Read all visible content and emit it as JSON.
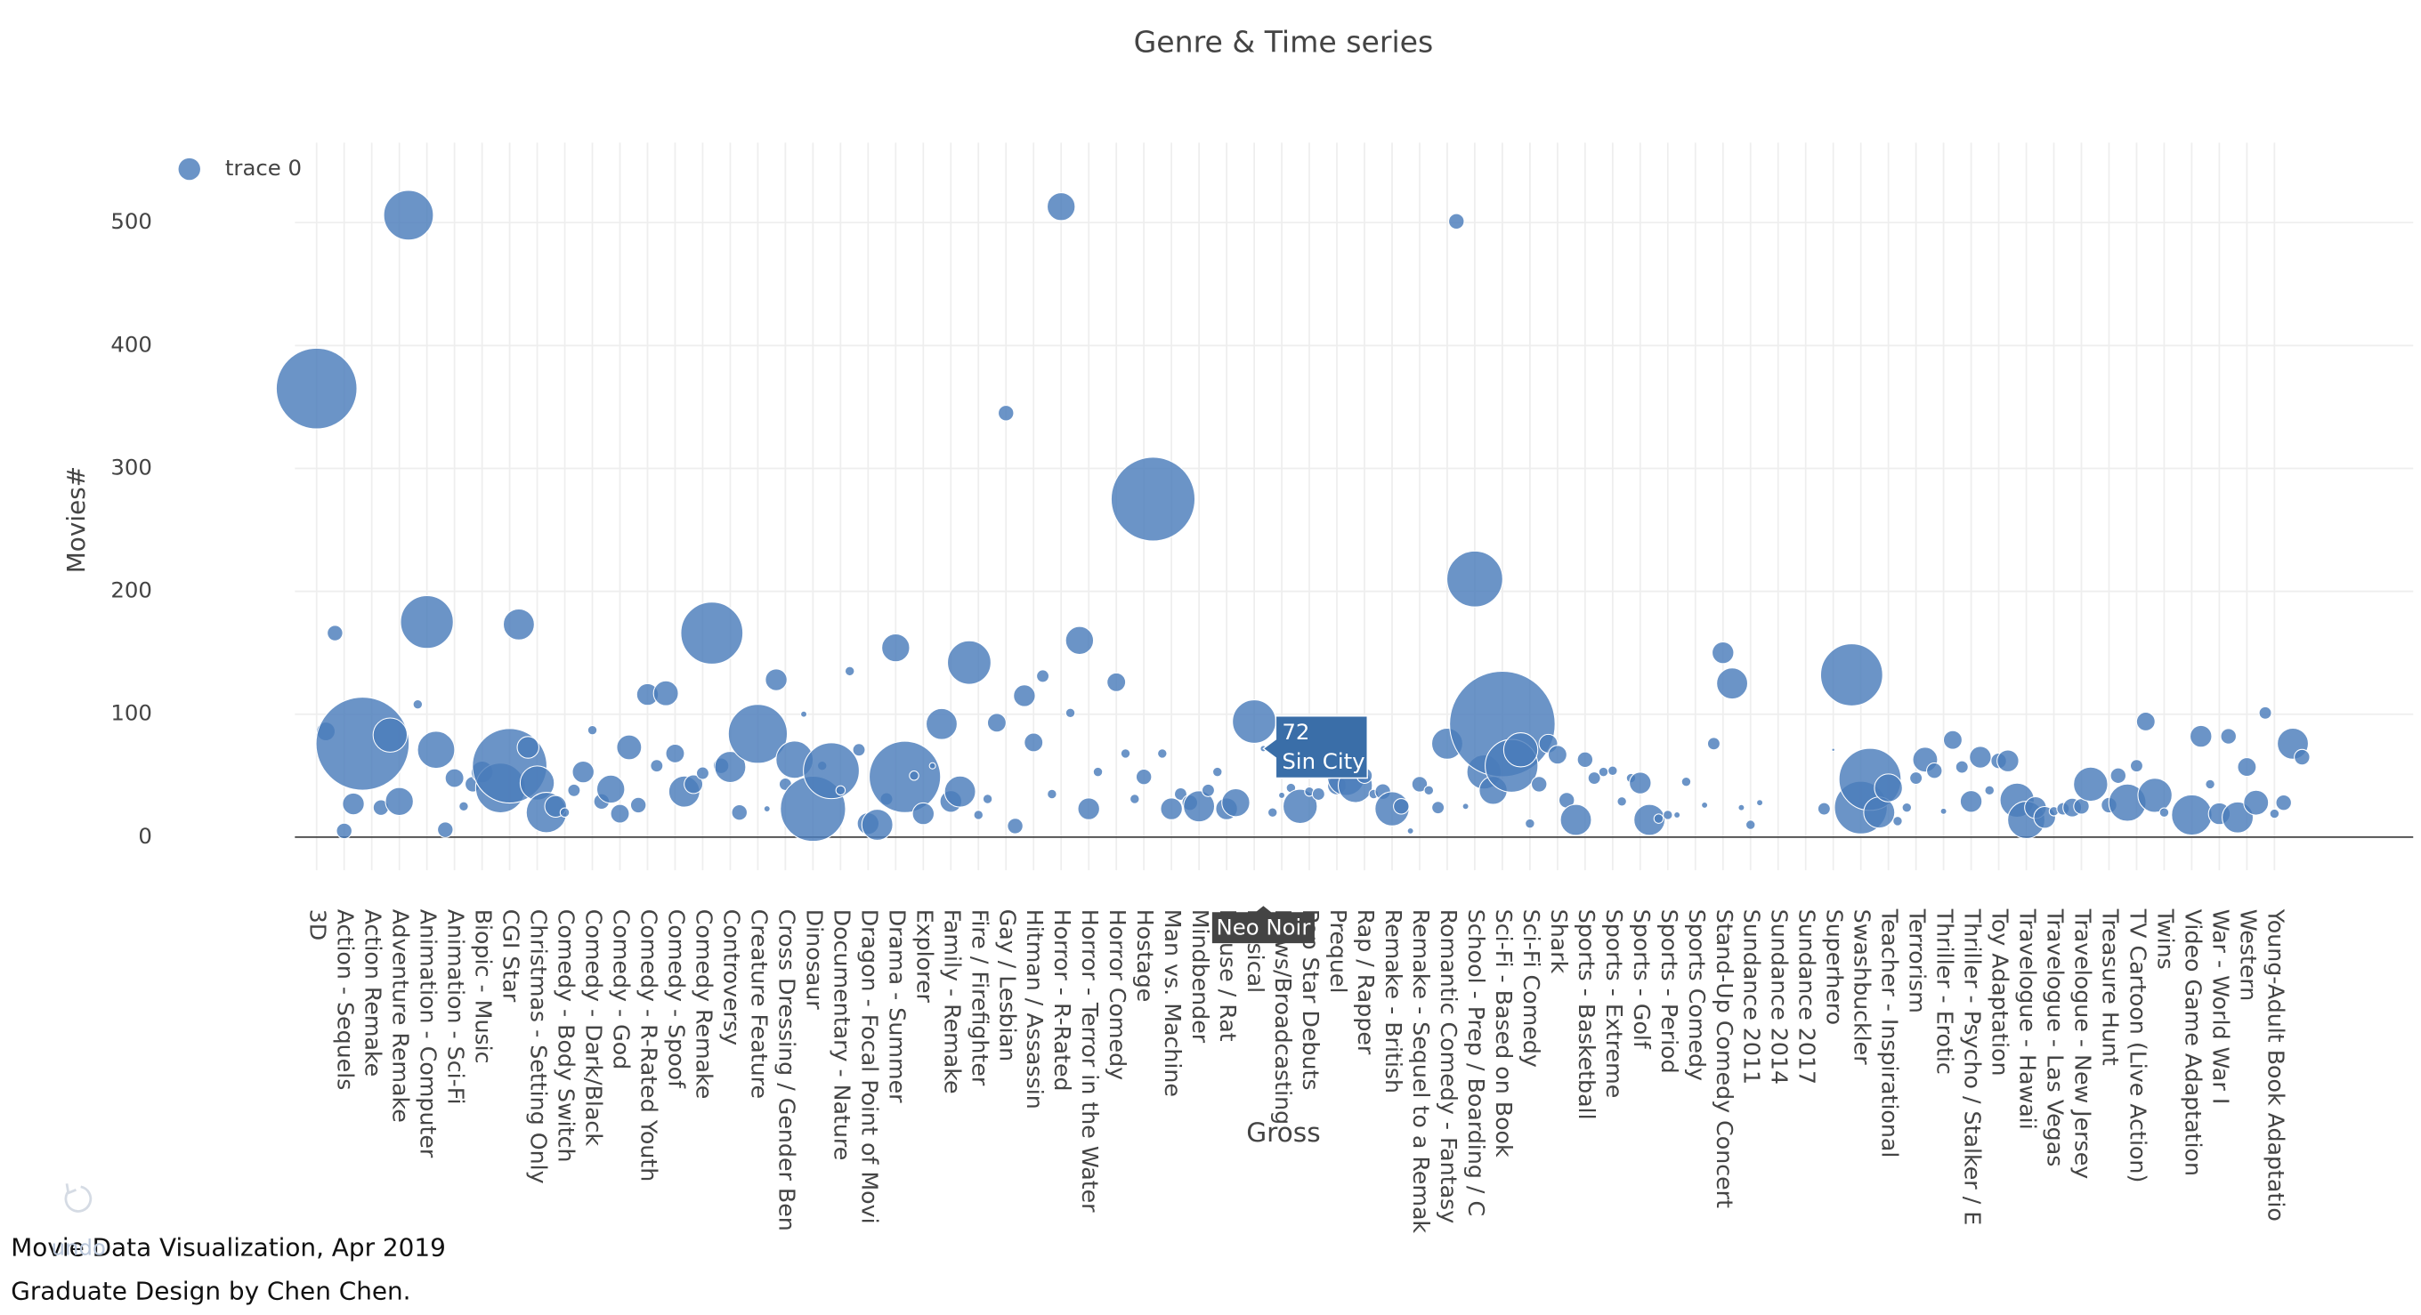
{
  "chart_data": {
    "type": "bubble",
    "title": "Genre & Time series",
    "x_label": "Gross",
    "y_label": "Movies#",
    "legend": "top-left",
    "grid": true,
    "ylim": [
      -27,
      565
    ],
    "yticks": [
      0,
      100,
      200,
      300,
      400,
      500
    ],
    "categories": [
      "3D",
      null,
      null,
      "Action - Sequels",
      null,
      null,
      "Action Remake",
      null,
      null,
      "Adventure Remake",
      null,
      null,
      "Animation - Computer",
      null,
      null,
      "Animation - Sci-Fi",
      null,
      null,
      "Biopic - Music",
      null,
      null,
      "CGI Star",
      null,
      null,
      "Christmas - Setting Only",
      null,
      null,
      "Comedy - Body Switch",
      null,
      null,
      "Comedy - Dark/Black",
      null,
      null,
      "Comedy - God",
      null,
      null,
      "Comedy - R-Rated Youth",
      null,
      null,
      "Comedy - Spoof",
      null,
      null,
      "Comedy Remake",
      null,
      null,
      "Controversy",
      null,
      null,
      "Creature Feature",
      null,
      null,
      "Cross Dressing / Gender Ben",
      null,
      null,
      "Dinosaur",
      null,
      null,
      "Documentary - Nature",
      null,
      null,
      "Dragon - Focal Point of Movi",
      null,
      null,
      "Drama - Summer",
      null,
      null,
      "Explorer",
      null,
      null,
      "Family - Remake",
      null,
      null,
      "Fire / Firefighter",
      null,
      null,
      "Gay / Lesbian",
      null,
      null,
      "Hitman / Assassin",
      null,
      null,
      "Horror - R-Rated",
      null,
      null,
      "Horror - Terror in the Water",
      null,
      null,
      "Horror Comedy",
      null,
      null,
      "Hostage",
      null,
      null,
      "Man vs. Machine",
      null,
      null,
      "Mindbender",
      null,
      null,
      "Mouse / Rat",
      null,
      null,
      "Musical",
      "Neo Noir",
      null,
      "News/Broadcasting",
      null,
      null,
      "Pop Star Debuts",
      null,
      null,
      "Prequel",
      null,
      null,
      "Rap / Rapper",
      null,
      null,
      "Remake - British",
      null,
      null,
      "Remake - Sequel to a Remak",
      null,
      null,
      "Romantic Comedy - Fantasy",
      null,
      null,
      "School - Prep / Boarding / C",
      null,
      null,
      "Sci-Fi - Based on Book",
      null,
      null,
      "Sci-Fi Comedy",
      null,
      null,
      "Shark",
      null,
      null,
      "Sports - Basketball",
      null,
      null,
      "Sports - Extreme",
      null,
      null,
      "Sports - Golf",
      null,
      null,
      "Sports - Period",
      null,
      null,
      "Sports Comedy",
      null,
      null,
      "Stand-Up Comedy Concert",
      null,
      null,
      "Sundance 2011",
      null,
      null,
      "Sundance 2014",
      null,
      null,
      "Sundance 2017",
      null,
      null,
      "Superhero",
      null,
      null,
      "Swashbuckler",
      null,
      null,
      "Teacher - Inspirational",
      null,
      null,
      "Terrorism",
      null,
      null,
      "Thriller - Erotic",
      null,
      null,
      "Thriller - Psycho / Stalker / E",
      null,
      null,
      "Toy Adaptation",
      null,
      null,
      "Travelogue - Hawaii",
      null,
      null,
      "Travelogue - Las Vegas",
      null,
      null,
      "Travelogue - New Jersey",
      null,
      null,
      "Treasure Hunt",
      null,
      null,
      "TV Cartoon (Live Action)",
      null,
      null,
      "Twins",
      null,
      null,
      "Video Game Adaptation",
      null,
      null,
      "War - World War I",
      null,
      null,
      "Western",
      null,
      null,
      "Young-Adult Book Adaptatio",
      null,
      null,
      null
    ],
    "series": [
      {
        "name": "trace 0",
        "color": "#4a7dbb",
        "values": [
          365,
          86,
          166,
          5,
          27,
          76,
          null,
          24,
          83,
          29,
          506,
          108,
          175,
          71,
          6,
          48,
          25,
          43,
          53,
          null,
          40,
          58,
          173,
          73,
          44,
          20,
          25,
          20,
          38,
          53,
          87,
          29,
          39,
          19,
          73,
          26,
          116,
          58,
          117,
          68,
          37,
          43,
          52,
          166,
          58,
          57,
          20,
          null,
          84,
          23,
          128,
          43,
          63,
          100,
          23,
          58,
          54,
          38,
          135,
          71,
          11,
          10,
          31,
          154,
          49,
          50,
          19,
          58,
          92,
          29,
          37,
          142,
          18,
          31,
          93,
          345,
          9,
          115,
          77,
          131,
          35,
          513,
          101,
          160,
          23,
          53,
          null,
          126,
          68,
          31,
          49,
          275,
          68,
          23,
          35,
          28,
          25,
          38,
          53,
          23,
          28,
          null,
          94,
          72,
          20,
          34,
          40,
          25,
          37,
          35,
          null,
          42,
          49,
          42,
          50,
          35,
          37,
          23,
          25,
          5,
          43,
          38,
          24,
          76,
          501,
          25,
          210,
          53,
          38,
          92,
          58,
          71,
          11,
          43,
          76,
          67,
          30,
          14,
          63,
          48,
          53,
          54,
          29,
          48,
          44,
          14,
          15,
          18,
          18,
          45,
          null,
          26,
          76,
          150,
          125,
          24,
          10,
          28,
          null,
          null,
          null,
          null,
          null,
          null,
          23,
          71,
          null,
          132,
          24,
          47,
          20,
          40,
          13,
          24,
          48,
          63,
          54,
          21,
          79,
          57,
          29,
          65,
          38,
          62,
          62,
          30,
          14,
          24,
          16,
          21,
          23,
          24,
          25,
          43,
          null,
          26,
          50,
          28,
          58,
          94,
          34,
          20,
          null,
          null,
          18,
          82,
          43,
          19,
          82,
          16,
          57,
          28,
          101,
          19,
          28,
          76,
          65
        ],
        "sizes": [
          52,
          12,
          10,
          10,
          14,
          60,
          null,
          10,
          22,
          18,
          32,
          6,
          34,
          24,
          10,
          12,
          6,
          10,
          14,
          null,
          32,
          48,
          20,
          14,
          22,
          26,
          14,
          6,
          8,
          14,
          6,
          10,
          18,
          12,
          16,
          10,
          14,
          8,
          16,
          12,
          20,
          12,
          8,
          40,
          10,
          20,
          10,
          null,
          38,
          4,
          14,
          8,
          24,
          4,
          42,
          6,
          36,
          6,
          6,
          8,
          14,
          20,
          8,
          18,
          46,
          6,
          14,
          4,
          20,
          14,
          20,
          28,
          6,
          6,
          12,
          10,
          10,
          14,
          12,
          8,
          6,
          18,
          6,
          18,
          14,
          6,
          null,
          12,
          6,
          6,
          10,
          54,
          6,
          14,
          8,
          10,
          20,
          8,
          6,
          14,
          18,
          null,
          28,
          4,
          6,
          4,
          6,
          22,
          6,
          8,
          null,
          12,
          24,
          22,
          10,
          6,
          10,
          22,
          10,
          4,
          10,
          6,
          8,
          20,
          10,
          4,
          36,
          22,
          18,
          68,
          34,
          22,
          6,
          10,
          12,
          12,
          10,
          20,
          10,
          8,
          6,
          6,
          6,
          6,
          14,
          20,
          6,
          6,
          4,
          6,
          null,
          4,
          8,
          14,
          20,
          4,
          6,
          4,
          null,
          null,
          null,
          null,
          null,
          null,
          8,
          2,
          null,
          40,
          34,
          40,
          20,
          18,
          6,
          6,
          8,
          16,
          10,
          4,
          12,
          8,
          14,
          14,
          6,
          10,
          14,
          22,
          24,
          14,
          14,
          6,
          8,
          12,
          10,
          22,
          null,
          10,
          10,
          24,
          8,
          12,
          22,
          6,
          null,
          null,
          26,
          14,
          6,
          14,
          10,
          20,
          12,
          16,
          8,
          6,
          10,
          20,
          10
        ]
      }
    ],
    "hover": {
      "text": "Sin City"
    }
  },
  "toolbar": {
    "undo": "undo"
  },
  "footer": {
    "lines": [
      "Movie Data Visualization, Apr 2019",
      "Graduate Design by Chen Chen."
    ]
  }
}
